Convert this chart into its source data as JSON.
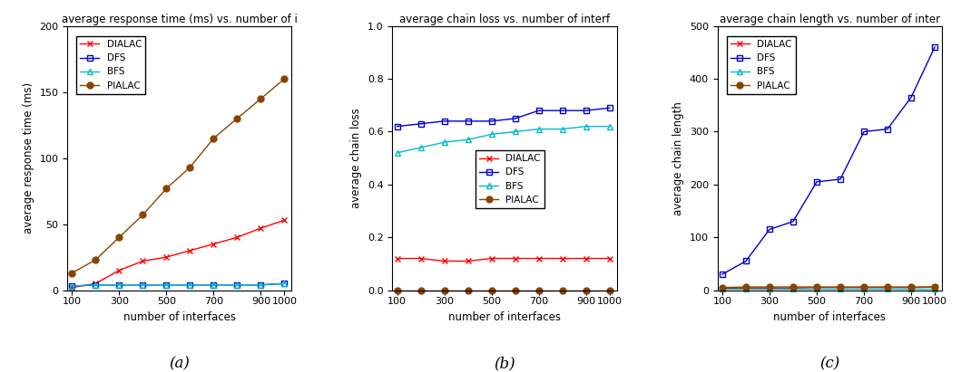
{
  "x": [
    100,
    200,
    300,
    400,
    500,
    600,
    700,
    800,
    900,
    1000
  ],
  "chart_a": {
    "title": "average response time (ms) vs. number of i",
    "xlabel": "number of interfaces",
    "ylabel": "average response time (ms)",
    "ylim": [
      0,
      200
    ],
    "yticks": [
      0,
      50,
      100,
      150,
      200
    ],
    "sublabel": "(a)",
    "DIALAC": [
      2,
      5,
      15,
      22,
      25,
      30,
      35,
      40,
      47,
      53
    ],
    "DFS": [
      3,
      4,
      4,
      4,
      4,
      4,
      4,
      4,
      4,
      5
    ],
    "BFS": [
      3,
      4,
      4,
      4,
      4,
      4,
      4,
      4,
      4,
      5
    ],
    "PIALAC": [
      13,
      23,
      40,
      57,
      77,
      93,
      115,
      130,
      145,
      160
    ]
  },
  "chart_b": {
    "title": "average chain loss vs. number of interf",
    "xlabel": "number of interfaces",
    "ylabel": "average chain loss",
    "ylim": [
      0,
      1
    ],
    "yticks": [
      0,
      0.2,
      0.4,
      0.6,
      0.8,
      1.0
    ],
    "sublabel": "(b)",
    "DIALAC": [
      0.12,
      0.12,
      0.11,
      0.11,
      0.12,
      0.12,
      0.12,
      0.12,
      0.12,
      0.12
    ],
    "DFS": [
      0.62,
      0.63,
      0.64,
      0.64,
      0.64,
      0.65,
      0.68,
      0.68,
      0.68,
      0.69
    ],
    "BFS": [
      0.52,
      0.54,
      0.56,
      0.57,
      0.59,
      0.6,
      0.61,
      0.61,
      0.62,
      0.62
    ],
    "PIALAC": [
      0.0,
      0.0,
      0.0,
      0.0,
      0.0,
      0.0,
      0.0,
      0.0,
      0.0,
      0.0
    ]
  },
  "chart_c": {
    "title": "average chain length vs. number of inter",
    "xlabel": "number of interfaces",
    "ylabel": "average chain length",
    "ylim": [
      0,
      500
    ],
    "yticks": [
      0,
      100,
      200,
      300,
      400,
      500
    ],
    "sublabel": "(c)",
    "DIALAC": [
      3,
      4,
      4,
      4,
      5,
      5,
      5,
      5,
      5,
      6
    ],
    "DFS": [
      30,
      55,
      115,
      130,
      205,
      210,
      300,
      305,
      365,
      460
    ],
    "BFS": [
      2,
      2,
      2,
      2,
      2,
      2,
      2,
      2,
      2,
      2
    ],
    "PIALAC": [
      5,
      6,
      6,
      6,
      6,
      6,
      6,
      6,
      6,
      6
    ]
  },
  "colors": {
    "DIALAC": "#ff0000",
    "DFS": "#0000cc",
    "BFS": "#00bbcc",
    "PIALAC": "#884400"
  },
  "markers": {
    "DIALAC": "x",
    "DFS": "s",
    "BFS": "^",
    "PIALAC": "o"
  },
  "markerfacecolors": {
    "DIALAC": "none",
    "DFS": "none",
    "BFS": "none",
    "PIALAC": "#884400"
  },
  "xticks": [
    100,
    300,
    500,
    700,
    900,
    1000
  ],
  "xtick_labels": [
    "100",
    "300",
    "500",
    "700",
    "900|1000",
    ""
  ],
  "legend_positions": {
    "chart_a": [
      0,
      "upper left",
      0.0,
      0.0
    ],
    "chart_b": [
      1,
      "lower center",
      0.0,
      0.0
    ],
    "chart_c": [
      2,
      "upper left",
      0.0,
      0.0
    ]
  }
}
